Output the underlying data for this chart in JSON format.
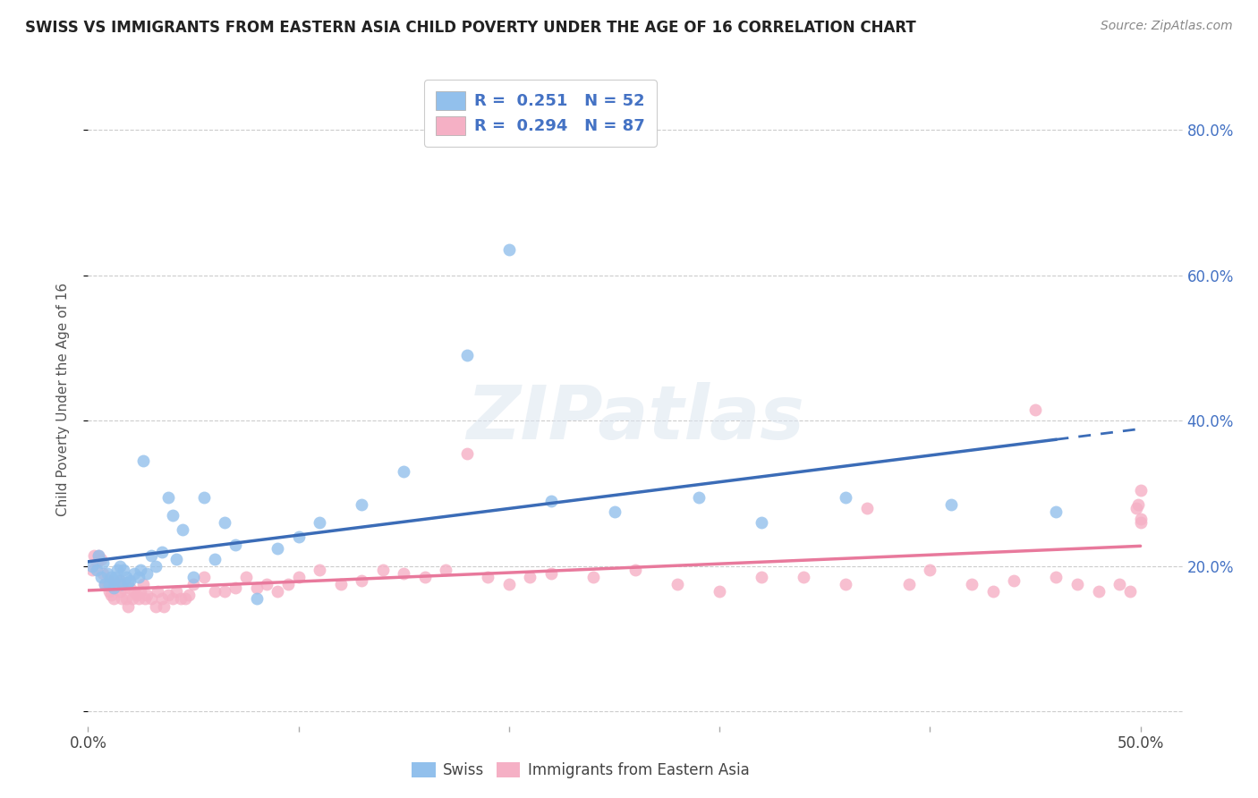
{
  "title": "SWISS VS IMMIGRANTS FROM EASTERN ASIA CHILD POVERTY UNDER THE AGE OF 16 CORRELATION CHART",
  "source": "Source: ZipAtlas.com",
  "ylabel": "Child Poverty Under the Age of 16",
  "xlim": [
    0.0,
    0.52
  ],
  "ylim": [
    -0.02,
    0.88
  ],
  "yticks": [
    0.0,
    0.2,
    0.4,
    0.6,
    0.8
  ],
  "ytick_labels": [
    "",
    "20.0%",
    "40.0%",
    "60.0%",
    "80.0%"
  ],
  "xtick_labels": [
    "0.0%",
    "50.0%"
  ],
  "swiss_color": "#92c0ec",
  "immigrant_color": "#f5b0c5",
  "swiss_line_color": "#3b6cb7",
  "immigrant_line_color": "#e8799c",
  "swiss_R": "0.251",
  "swiss_N": "52",
  "immigrant_R": "0.294",
  "immigrant_N": "87",
  "swiss_scatter_x": [
    0.002,
    0.004,
    0.005,
    0.006,
    0.007,
    0.008,
    0.009,
    0.01,
    0.011,
    0.012,
    0.012,
    0.013,
    0.014,
    0.015,
    0.015,
    0.016,
    0.017,
    0.018,
    0.019,
    0.02,
    0.022,
    0.024,
    0.025,
    0.026,
    0.028,
    0.03,
    0.032,
    0.035,
    0.038,
    0.04,
    0.042,
    0.045,
    0.05,
    0.055,
    0.06,
    0.065,
    0.07,
    0.08,
    0.09,
    0.1,
    0.11,
    0.13,
    0.15,
    0.18,
    0.2,
    0.22,
    0.25,
    0.29,
    0.32,
    0.36,
    0.41,
    0.46
  ],
  "swiss_scatter_y": [
    0.2,
    0.195,
    0.215,
    0.185,
    0.205,
    0.175,
    0.19,
    0.175,
    0.185,
    0.18,
    0.17,
    0.185,
    0.195,
    0.18,
    0.2,
    0.175,
    0.195,
    0.185,
    0.178,
    0.18,
    0.19,
    0.185,
    0.195,
    0.345,
    0.19,
    0.215,
    0.2,
    0.22,
    0.295,
    0.27,
    0.21,
    0.25,
    0.185,
    0.295,
    0.21,
    0.26,
    0.23,
    0.155,
    0.225,
    0.24,
    0.26,
    0.285,
    0.33,
    0.49,
    0.635,
    0.29,
    0.275,
    0.295,
    0.26,
    0.295,
    0.285,
    0.275
  ],
  "immigrant_scatter_x": [
    0.002,
    0.003,
    0.004,
    0.005,
    0.006,
    0.007,
    0.008,
    0.009,
    0.01,
    0.01,
    0.011,
    0.012,
    0.013,
    0.014,
    0.015,
    0.015,
    0.016,
    0.017,
    0.018,
    0.019,
    0.02,
    0.021,
    0.022,
    0.023,
    0.024,
    0.025,
    0.026,
    0.027,
    0.028,
    0.03,
    0.032,
    0.033,
    0.035,
    0.036,
    0.038,
    0.04,
    0.042,
    0.044,
    0.046,
    0.048,
    0.05,
    0.055,
    0.06,
    0.065,
    0.07,
    0.075,
    0.08,
    0.085,
    0.09,
    0.095,
    0.1,
    0.11,
    0.12,
    0.13,
    0.14,
    0.15,
    0.16,
    0.17,
    0.18,
    0.19,
    0.2,
    0.21,
    0.22,
    0.24,
    0.26,
    0.28,
    0.3,
    0.32,
    0.34,
    0.36,
    0.37,
    0.39,
    0.4,
    0.42,
    0.43,
    0.44,
    0.45,
    0.46,
    0.47,
    0.48,
    0.49,
    0.495,
    0.498,
    0.499,
    0.5,
    0.5,
    0.5
  ],
  "immigrant_scatter_y": [
    0.195,
    0.215,
    0.205,
    0.215,
    0.21,
    0.19,
    0.175,
    0.175,
    0.165,
    0.18,
    0.16,
    0.155,
    0.17,
    0.175,
    0.165,
    0.18,
    0.155,
    0.17,
    0.155,
    0.145,
    0.17,
    0.155,
    0.165,
    0.16,
    0.155,
    0.165,
    0.175,
    0.155,
    0.16,
    0.155,
    0.145,
    0.165,
    0.155,
    0.145,
    0.16,
    0.155,
    0.165,
    0.155,
    0.155,
    0.16,
    0.175,
    0.185,
    0.165,
    0.165,
    0.17,
    0.185,
    0.17,
    0.175,
    0.165,
    0.175,
    0.185,
    0.195,
    0.175,
    0.18,
    0.195,
    0.19,
    0.185,
    0.195,
    0.355,
    0.185,
    0.175,
    0.185,
    0.19,
    0.185,
    0.195,
    0.175,
    0.165,
    0.185,
    0.185,
    0.175,
    0.28,
    0.175,
    0.195,
    0.175,
    0.165,
    0.18,
    0.415,
    0.185,
    0.175,
    0.165,
    0.175,
    0.165,
    0.28,
    0.285,
    0.265,
    0.305,
    0.26
  ]
}
